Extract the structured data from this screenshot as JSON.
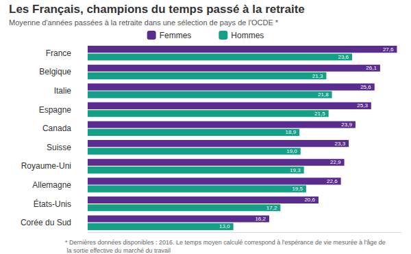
{
  "chart_data": {
    "type": "bar",
    "orientation": "horizontal",
    "title": "Les Français, champions du temps passé à la retraite",
    "subtitle": "Moyenne d'années passées à la retraite dans une sélection de pays de l'OCDE *",
    "footnote": "* Dernières données disponibles : 2016. Le temps moyen calculé correspond à l'espérance de vie mesurée à l'âge de la sortie effective du marché du travail",
    "categories": [
      "France",
      "Belgique",
      "Italie",
      "Espagne",
      "Canada",
      "Suisse",
      "Royaume-Uni",
      "Allemagne",
      "États-Unis",
      "Corée du Sud"
    ],
    "series": [
      {
        "name": "Femmes",
        "color": "#5b2c8f",
        "values": [
          27.6,
          26.1,
          25.6,
          25.3,
          23.9,
          23.3,
          22.9,
          22.6,
          20.6,
          16.2
        ],
        "value_labels": [
          "27,6",
          "26,1",
          "25,6",
          "25,3",
          "23,9",
          "23,3",
          "22,9",
          "22,6",
          "20,6",
          "16,2"
        ]
      },
      {
        "name": "Hommes",
        "color": "#14a087",
        "values": [
          23.6,
          21.3,
          21.8,
          21.5,
          18.9,
          19.0,
          19.3,
          19.5,
          17.2,
          13.0
        ],
        "value_labels": [
          "23,6",
          "21,3",
          "21,8",
          "21,5",
          "18,9",
          "19,0",
          "19,3",
          "19,5",
          "17,2",
          "13,0"
        ]
      }
    ],
    "xlim": [
      0,
      28
    ],
    "data_labels": true,
    "tick_labels": "y",
    "grid": false,
    "legend": "top"
  }
}
